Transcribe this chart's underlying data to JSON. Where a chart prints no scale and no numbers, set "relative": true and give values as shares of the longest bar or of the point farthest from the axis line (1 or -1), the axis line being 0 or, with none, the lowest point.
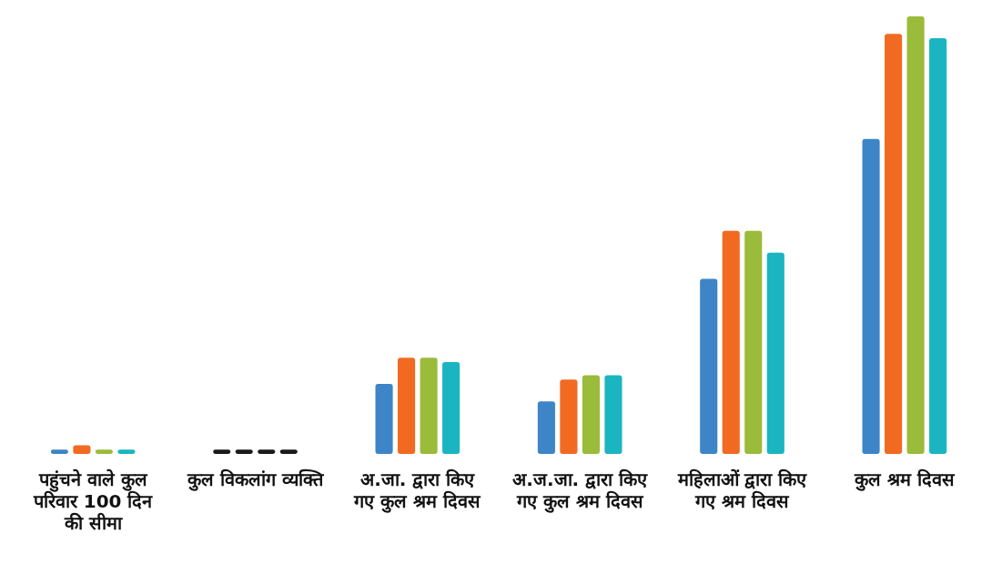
{
  "chart_data": {
    "type": "bar",
    "relative": true,
    "grid": false,
    "legend": false,
    "categories": [
      "पहुंचने वाले कुल परिवार 100 दिन की सीमा",
      "कुल विकलांग व्यक्ति",
      "अ.जा. द्वारा किए गए कुल श्रम दिवस",
      "अ.ज.जा. द्वारा किए गए कुल श्रम दिवस",
      "महिलाओं द्वारा किए गए श्रम दिवस",
      "कुल श्रम दिवस"
    ],
    "series": [
      {
        "color": "#3d85c6",
        "colors": [
          null,
          "#1a1a1a",
          null,
          null,
          null,
          null
        ],
        "values": [
          0.01,
          0.01,
          0.16,
          0.12,
          0.4,
          0.72
        ]
      },
      {
        "color": "#f26a21",
        "colors": [
          null,
          "#1a1a1a",
          null,
          null,
          null,
          null
        ],
        "values": [
          0.02,
          0.01,
          0.22,
          0.17,
          0.51,
          0.96
        ]
      },
      {
        "color": "#9bbb3b",
        "colors": [
          null,
          "#1a1a1a",
          null,
          null,
          null,
          null
        ],
        "values": [
          0.01,
          0.01,
          0.22,
          0.18,
          0.51,
          1
        ]
      },
      {
        "color": "#1ab5c1",
        "colors": [
          null,
          "#1a1a1a",
          null,
          null,
          null,
          null
        ],
        "values": [
          0.01,
          0.01,
          0.21,
          0.18,
          0.46,
          0.95
        ]
      }
    ]
  }
}
